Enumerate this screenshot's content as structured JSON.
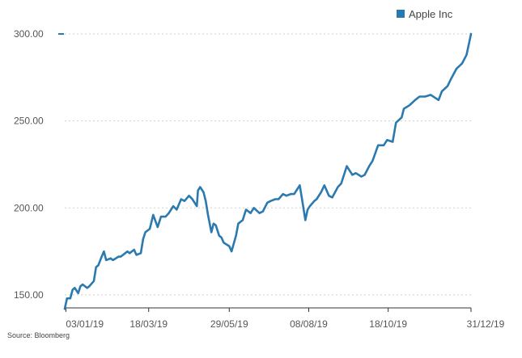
{
  "chart_data": {
    "type": "line",
    "title": "",
    "xlabel": "",
    "ylabel": "",
    "legend": {
      "placement": "top-right",
      "entries": [
        "Apple Inc"
      ]
    },
    "grid": {
      "horizontal": true,
      "vertical": false,
      "style": "dotted"
    },
    "ylim": [
      143,
      300
    ],
    "yticks": [
      150,
      200,
      250,
      300
    ],
    "ytick_labels": [
      "150.00",
      "200.00",
      "250.00",
      "300.00"
    ],
    "xlim": [
      "2019-01-02",
      "2019-12-31"
    ],
    "xticks": [
      "2019-01-03",
      "2019-03-18",
      "2019-05-29",
      "2019-08-08",
      "2019-10-18",
      "2019-12-31"
    ],
    "xtick_labels": [
      "03/01/19",
      "18/03/19",
      "29/05/19",
      "08/08/19",
      "18/10/19",
      "31/12/19"
    ],
    "series": [
      {
        "name": "Apple Inc",
        "color": "#2a7ab0",
        "x": [
          "2019-01-02",
          "2019-01-04",
          "2019-01-07",
          "2019-01-09",
          "2019-01-11",
          "2019-01-14",
          "2019-01-16",
          "2019-01-18",
          "2019-01-22",
          "2019-01-24",
          "2019-01-28",
          "2019-01-30",
          "2019-02-01",
          "2019-02-04",
          "2019-02-06",
          "2019-02-08",
          "2019-02-12",
          "2019-02-14",
          "2019-02-19",
          "2019-02-21",
          "2019-02-25",
          "2019-02-27",
          "2019-03-01",
          "2019-03-05",
          "2019-03-07",
          "2019-03-11",
          "2019-03-13",
          "2019-03-15",
          "2019-03-19",
          "2019-03-22",
          "2019-03-26",
          "2019-03-29",
          "2019-04-02",
          "2019-04-05",
          "2019-04-09",
          "2019-04-12",
          "2019-04-16",
          "2019-04-19",
          "2019-04-23",
          "2019-04-26",
          "2019-04-30",
          "2019-05-01",
          "2019-05-03",
          "2019-05-06",
          "2019-05-08",
          "2019-05-10",
          "2019-05-13",
          "2019-05-15",
          "2019-05-17",
          "2019-05-20",
          "2019-05-22",
          "2019-05-24",
          "2019-05-29",
          "2019-05-31",
          "2019-06-04",
          "2019-06-06",
          "2019-06-10",
          "2019-06-13",
          "2019-06-17",
          "2019-06-20",
          "2019-06-25",
          "2019-06-28",
          "2019-07-02",
          "2019-07-05",
          "2019-07-09",
          "2019-07-12",
          "2019-07-16",
          "2019-07-19",
          "2019-07-23",
          "2019-07-26",
          "2019-07-30",
          "2019-07-31",
          "2019-08-02",
          "2019-08-05",
          "2019-08-07",
          "2019-08-09",
          "2019-08-13",
          "2019-08-15",
          "2019-08-19",
          "2019-08-22",
          "2019-08-26",
          "2019-08-29",
          "2019-09-03",
          "2019-09-06",
          "2019-09-11",
          "2019-09-16",
          "2019-09-19",
          "2019-09-24",
          "2019-09-27",
          "2019-10-01",
          "2019-10-04",
          "2019-10-09",
          "2019-10-14",
          "2019-10-17",
          "2019-10-22",
          "2019-10-25",
          "2019-10-30",
          "2019-11-01",
          "2019-11-06",
          "2019-11-11",
          "2019-11-15",
          "2019-11-20",
          "2019-11-25",
          "2019-12-02",
          "2019-12-05",
          "2019-12-10",
          "2019-12-13",
          "2019-12-18",
          "2019-12-23",
          "2019-12-27",
          "2019-12-31"
        ],
        "y": [
          142,
          148,
          148,
          153,
          154,
          151,
          155,
          156,
          154,
          155,
          158,
          166,
          167,
          172,
          175,
          170,
          171,
          170,
          172,
          172,
          174,
          175,
          174,
          176,
          173,
          174,
          182,
          186,
          188,
          196,
          189,
          195,
          195,
          197,
          201,
          199,
          205,
          204,
          207,
          205,
          201,
          210,
          212,
          209,
          204,
          196,
          186,
          191,
          190,
          184,
          183,
          180,
          178,
          175,
          184,
          191,
          193,
          199,
          197,
          200,
          197,
          198,
          203,
          204,
          205,
          205,
          208,
          207,
          208,
          208,
          212,
          213,
          205,
          193,
          199,
          201,
          204,
          205,
          209,
          213,
          207,
          206,
          212,
          214,
          224,
          219,
          220,
          218,
          219,
          224,
          227,
          236,
          236,
          239,
          238,
          249,
          252,
          257,
          259,
          262,
          264,
          264,
          265,
          262,
          267,
          270,
          274,
          280,
          283,
          288,
          300
        ]
      }
    ]
  },
  "legend_label": "Apple Inc",
  "source_text": "Source: Bloomberg"
}
